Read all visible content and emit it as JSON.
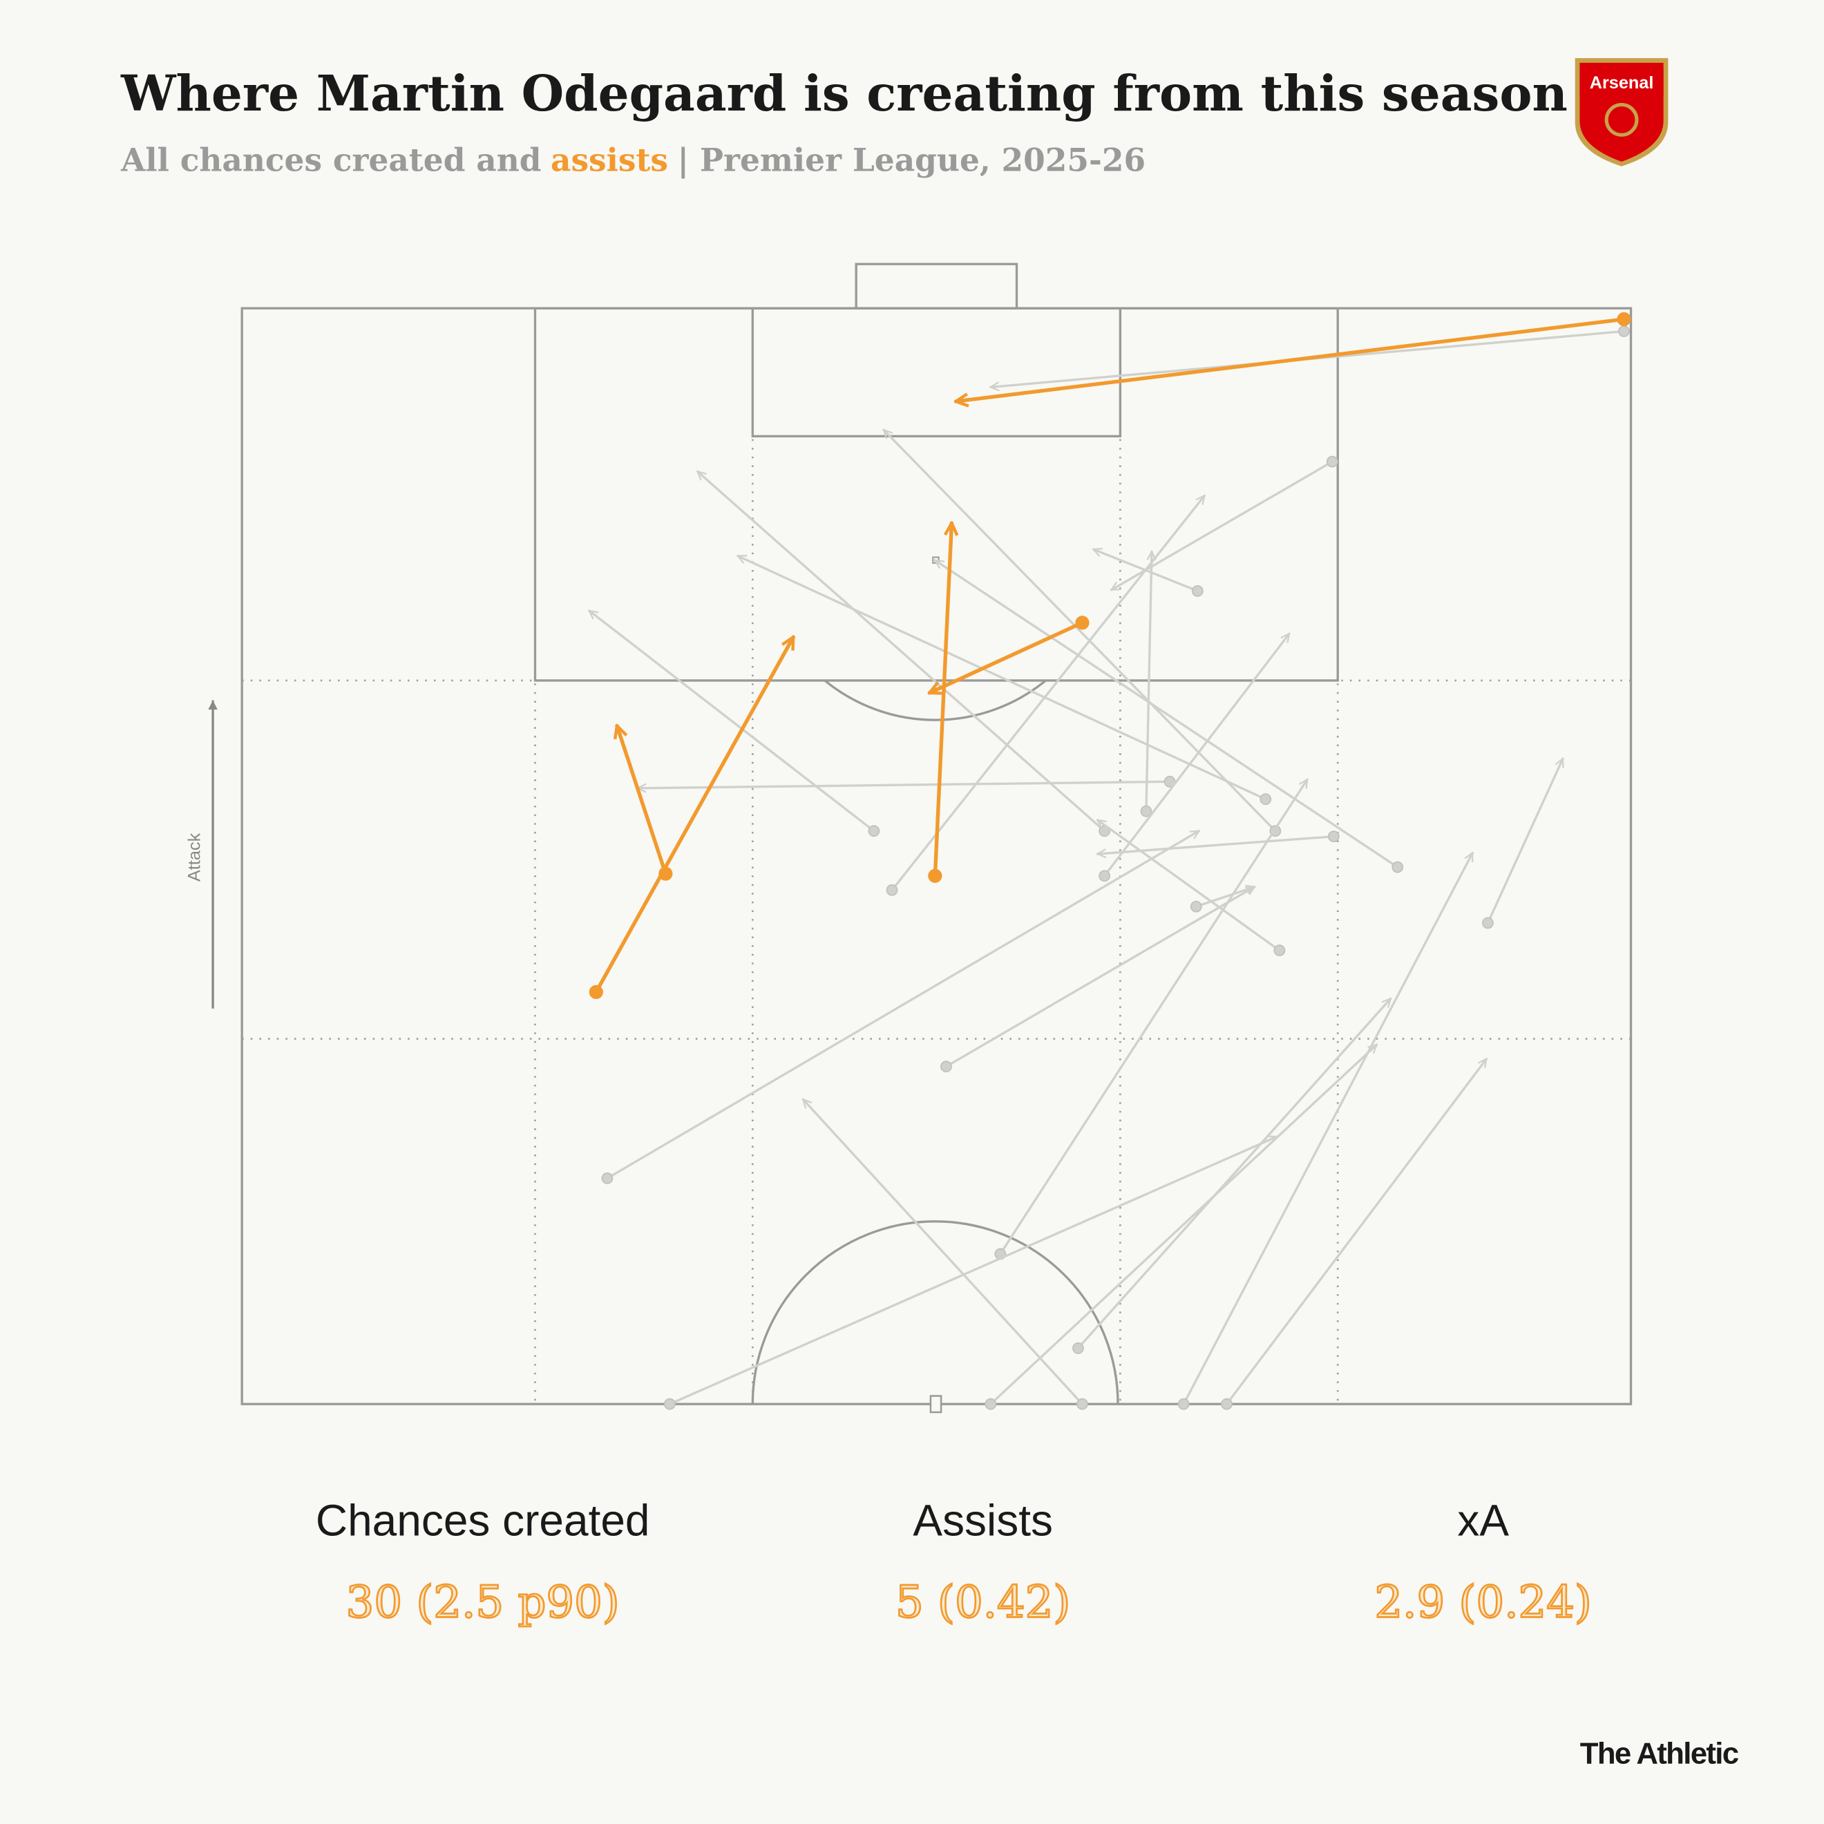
{
  "title": "Where Martin Odegaard is creating from this season",
  "subtitle_parts": [
    "All chances created and",
    "assists",
    "| Premier League, 2025-26"
  ],
  "logo_text": "Arsenal",
  "attack_label": "Attack",
  "footer": "The Athletic",
  "stats": [
    {
      "label": "Chances created",
      "value": "30 (2.5 p90)"
    },
    {
      "label": "Assists",
      "value": "5 (0.42)"
    },
    {
      "label": "xA",
      "value": "2.9 (0.24)"
    }
  ],
  "chart_data": {
    "type": "pass",
    "xlim": [
      0,
      100
    ],
    "ylim": [
      0,
      100
    ],
    "series": [
      {
        "color": "#d0d0cc",
        "x": [
          78.5,
          68.8,
          45.5,
          65.1,
          66.8,
          73.7,
          74.4,
          78.6,
          62.1,
          74.7,
          62.1,
          46.8,
          83.2,
          68.7,
          50.7,
          26.3,
          89.7,
          54.6,
          60.2,
          30.8,
          53.9,
          60.5,
          67.8,
          70.9,
          99.5
        ],
        "y": [
          86.0,
          74.2,
          52.3,
          54.1,
          56.8,
          55.2,
          52.3,
          51.8,
          52.3,
          41.4,
          48.2,
          46.9,
          49.0,
          45.4,
          30.8,
          20.6,
          43.9,
          13.7,
          5.1,
          0,
          0,
          0,
          0,
          0,
          97.9
        ],
        "x_end": [
          62.6,
          61.3,
          25.0,
          65.5,
          28.5,
          35.7,
          46.2,
          61.6,
          32.8,
          61.6,
          75.4,
          69.3,
          49.9,
          72.9,
          72.9,
          68.9,
          95.1,
          76.7,
          82.7,
          74.5,
          81.7,
          40.4,
          88.6,
          89.6,
          53.9
        ],
        "y_end": [
          74.3,
          78.0,
          72.4,
          77.8,
          56.2,
          77.4,
          88.9,
          50.2,
          85.1,
          53.3,
          70.3,
          82.9,
          77.0,
          47.2,
          47.2,
          52.3,
          58.9,
          57.0,
          37.0,
          24.4,
          32.8,
          27.8,
          50.3,
          31.5,
          92.8
        ]
      },
      {
        "color": "#f29a2e",
        "x": [
          99.5,
          25.5,
          30.5,
          49.9,
          60.5
        ],
        "y": [
          99.0,
          37.6,
          48.4,
          48.2,
          71.3
        ],
        "x_end": [
          51.4,
          39.7,
          27.0,
          51.1,
          49.5
        ],
        "y_end": [
          91.5,
          70.0,
          61.9,
          80.4,
          64.9
        ]
      }
    ]
  }
}
